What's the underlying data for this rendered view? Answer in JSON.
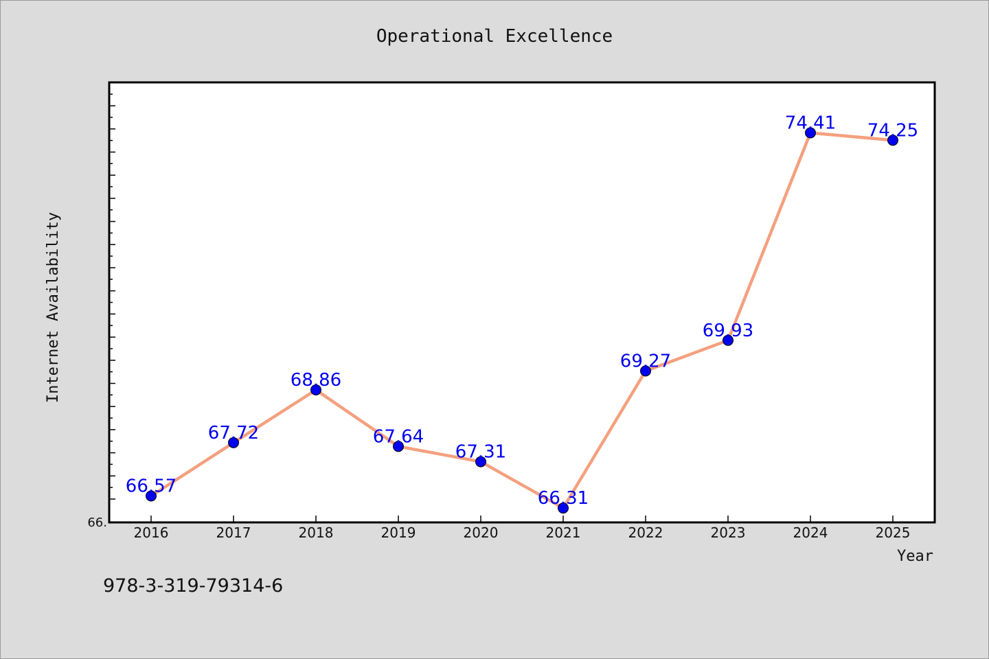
{
  "chart_data": {
    "type": "line",
    "title": "Operational Excellence",
    "xlabel": "Year",
    "ylabel": "Internet Availability",
    "categories": [
      "2016",
      "2017",
      "2018",
      "2019",
      "2020",
      "2021",
      "2022",
      "2023",
      "2024",
      "2025"
    ],
    "series": [
      {
        "values": [
          66.57,
          67.72,
          68.86,
          67.64,
          67.31,
          66.31,
          69.27,
          69.93,
          74.41,
          74.25
        ],
        "labels": [
          "66.57",
          "67.72",
          "68.86",
          "67.64",
          "67.31",
          "66.31",
          "69.27",
          "69.93",
          "74.41",
          "74.25"
        ],
        "line_color": "#f4a07f",
        "marker_color": "#0000ee",
        "label_color": "#0000ee"
      }
    ],
    "ylim": [
      66.0,
      75.5
    ],
    "y_tick_label": "66.",
    "grid": false
  },
  "footer_text": "978-3-319-79314-6"
}
